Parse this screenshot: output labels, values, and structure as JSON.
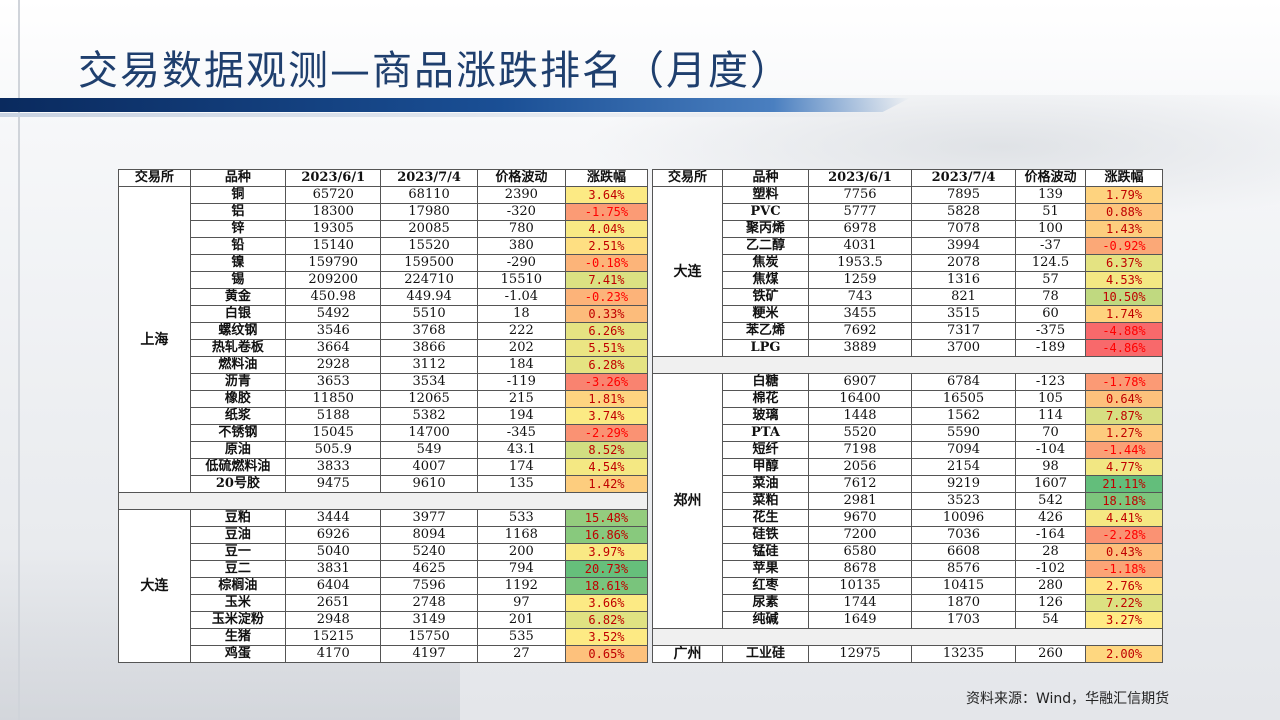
{
  "title": "交易数据观测—商品涨跌排名（月度）",
  "source": "资料来源：Wind，华融汇信期货",
  "colors": {
    "title": "#1f3f6e",
    "band": "#1a4f95",
    "scale_neg": "#f8696b",
    "scale_mid": "#ffeb84",
    "scale_pos": "#63be7b",
    "text_neg": "#ff0000",
    "text_pos": "#c00000"
  },
  "headers": [
    "交易所",
    "品种",
    "2023/6/1",
    "2023/7/4",
    "价格波动",
    "涨跌幅"
  ],
  "left": [
    {
      "exchange": "上海",
      "rows": [
        [
          "铜",
          "65720",
          "68110",
          "2390",
          "3.64%",
          3.64
        ],
        [
          "铝",
          "18300",
          "17980",
          "-320",
          "-1.75%",
          -1.75
        ],
        [
          "锌",
          "19305",
          "20085",
          "780",
          "4.04%",
          4.04
        ],
        [
          "铅",
          "15140",
          "15520",
          "380",
          "2.51%",
          2.51
        ],
        [
          "镍",
          "159790",
          "159500",
          "-290",
          "-0.18%",
          -0.18
        ],
        [
          "锡",
          "209200",
          "224710",
          "15510",
          "7.41%",
          7.41
        ],
        [
          "黄金",
          "450.98",
          "449.94",
          "-1.04",
          "-0.23%",
          -0.23
        ],
        [
          "白银",
          "5492",
          "5510",
          "18",
          "0.33%",
          0.33
        ],
        [
          "螺纹钢",
          "3546",
          "3768",
          "222",
          "6.26%",
          6.26
        ],
        [
          "热轧卷板",
          "3664",
          "3866",
          "202",
          "5.51%",
          5.51
        ],
        [
          "燃料油",
          "2928",
          "3112",
          "184",
          "6.28%",
          6.28
        ],
        [
          "沥青",
          "3653",
          "3534",
          "-119",
          "-3.26%",
          -3.26
        ],
        [
          "橡胶",
          "11850",
          "12065",
          "215",
          "1.81%",
          1.81
        ],
        [
          "纸浆",
          "5188",
          "5382",
          "194",
          "3.74%",
          3.74
        ],
        [
          "不锈钢",
          "15045",
          "14700",
          "-345",
          "-2.29%",
          -2.29
        ],
        [
          "原油",
          "505.9",
          "549",
          "43.1",
          "8.52%",
          8.52
        ],
        [
          "低硫燃料油",
          "3833",
          "4007",
          "174",
          "4.54%",
          4.54
        ],
        [
          "20号胶",
          "9475",
          "9610",
          "135",
          "1.42%",
          1.42
        ]
      ]
    },
    {
      "exchange": "大连",
      "rows": [
        [
          "豆粕",
          "3444",
          "3977",
          "533",
          "15.48%",
          15.48
        ],
        [
          "豆油",
          "6926",
          "8094",
          "1168",
          "16.86%",
          16.86
        ],
        [
          "豆一",
          "5040",
          "5240",
          "200",
          "3.97%",
          3.97
        ],
        [
          "豆二",
          "3831",
          "4625",
          "794",
          "20.73%",
          20.73
        ],
        [
          "棕榈油",
          "6404",
          "7596",
          "1192",
          "18.61%",
          18.61
        ],
        [
          "玉米",
          "2651",
          "2748",
          "97",
          "3.66%",
          3.66
        ],
        [
          "玉米淀粉",
          "2948",
          "3149",
          "201",
          "6.82%",
          6.82
        ],
        [
          "生猪",
          "15215",
          "15750",
          "535",
          "3.52%",
          3.52
        ],
        [
          "鸡蛋",
          "4170",
          "4197",
          "27",
          "0.65%",
          0.65
        ]
      ]
    }
  ],
  "right": [
    {
      "exchange": "大连",
      "rows": [
        [
          "塑料",
          "7756",
          "7895",
          "139",
          "1.79%",
          1.79
        ],
        [
          "PVC",
          "5777",
          "5828",
          "51",
          "0.88%",
          0.88
        ],
        [
          "聚丙烯",
          "6978",
          "7078",
          "100",
          "1.43%",
          1.43
        ],
        [
          "乙二醇",
          "4031",
          "3994",
          "-37",
          "-0.92%",
          -0.92
        ],
        [
          "焦炭",
          "1953.5",
          "2078",
          "124.5",
          "6.37%",
          6.37
        ],
        [
          "焦煤",
          "1259",
          "1316",
          "57",
          "4.53%",
          4.53
        ],
        [
          "铁矿",
          "743",
          "821",
          "78",
          "10.50%",
          10.5
        ],
        [
          "粳米",
          "3455",
          "3515",
          "60",
          "1.74%",
          1.74
        ],
        [
          "苯乙烯",
          "7692",
          "7317",
          "-375",
          "-4.88%",
          -4.88
        ],
        [
          "LPG",
          "3889",
          "3700",
          "-189",
          "-4.86%",
          -4.86
        ]
      ]
    },
    {
      "exchange": "郑州",
      "rows": [
        [
          "白糖",
          "6907",
          "6784",
          "-123",
          "-1.78%",
          -1.78
        ],
        [
          "棉花",
          "16400",
          "16505",
          "105",
          "0.64%",
          0.64
        ],
        [
          "玻璃",
          "1448",
          "1562",
          "114",
          "7.87%",
          7.87
        ],
        [
          "PTA",
          "5520",
          "5590",
          "70",
          "1.27%",
          1.27
        ],
        [
          "短纤",
          "7198",
          "7094",
          "-104",
          "-1.44%",
          -1.44
        ],
        [
          "甲醇",
          "2056",
          "2154",
          "98",
          "4.77%",
          4.77
        ],
        [
          "菜油",
          "7612",
          "9219",
          "1607",
          "21.11%",
          21.11
        ],
        [
          "菜粕",
          "2981",
          "3523",
          "542",
          "18.18%",
          18.18
        ],
        [
          "花生",
          "9670",
          "10096",
          "426",
          "4.41%",
          4.41
        ],
        [
          "硅铁",
          "7200",
          "7036",
          "-164",
          "-2.28%",
          -2.28
        ],
        [
          "锰硅",
          "6580",
          "6608",
          "28",
          "0.43%",
          0.43
        ],
        [
          "苹果",
          "8678",
          "8576",
          "-102",
          "-1.18%",
          -1.18
        ],
        [
          "红枣",
          "10135",
          "10415",
          "280",
          "2.76%",
          2.76
        ],
        [
          "尿素",
          "1744",
          "1870",
          "126",
          "7.22%",
          7.22
        ],
        [
          "纯碱",
          "1649",
          "1703",
          "54",
          "3.27%",
          3.27
        ]
      ]
    },
    {
      "exchange": "广州",
      "rows": [
        [
          "工业硅",
          "12975",
          "13235",
          "260",
          "2.00%",
          2.0
        ]
      ]
    }
  ]
}
